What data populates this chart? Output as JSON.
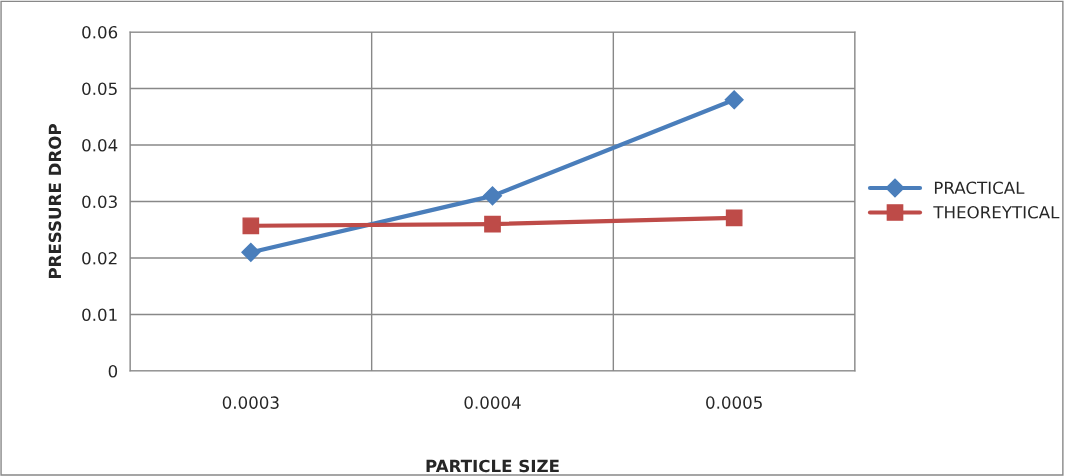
{
  "chart_data": {
    "type": "line",
    "xlabel": "PARTICLE SIZE",
    "ylabel": "PRESSURE DROP",
    "categories": [
      "0.0003",
      "0.0004",
      "0.0005"
    ],
    "series": [
      {
        "name": "PRACTICAL",
        "color": "#4a7ebb",
        "values": [
          0.021,
          0.031,
          0.048
        ],
        "marker": "diamond"
      },
      {
        "name": "THEOREYTICAL",
        "color": "#be4b48",
        "values": [
          0.0257,
          0.026,
          0.0271
        ],
        "marker": "square"
      }
    ],
    "ylim": [
      0,
      0.06
    ],
    "yticks": [
      0,
      0.01,
      0.02,
      0.03,
      0.04,
      0.05,
      0.06
    ],
    "grid": true,
    "legend": "right",
    "line_style": "solid"
  }
}
